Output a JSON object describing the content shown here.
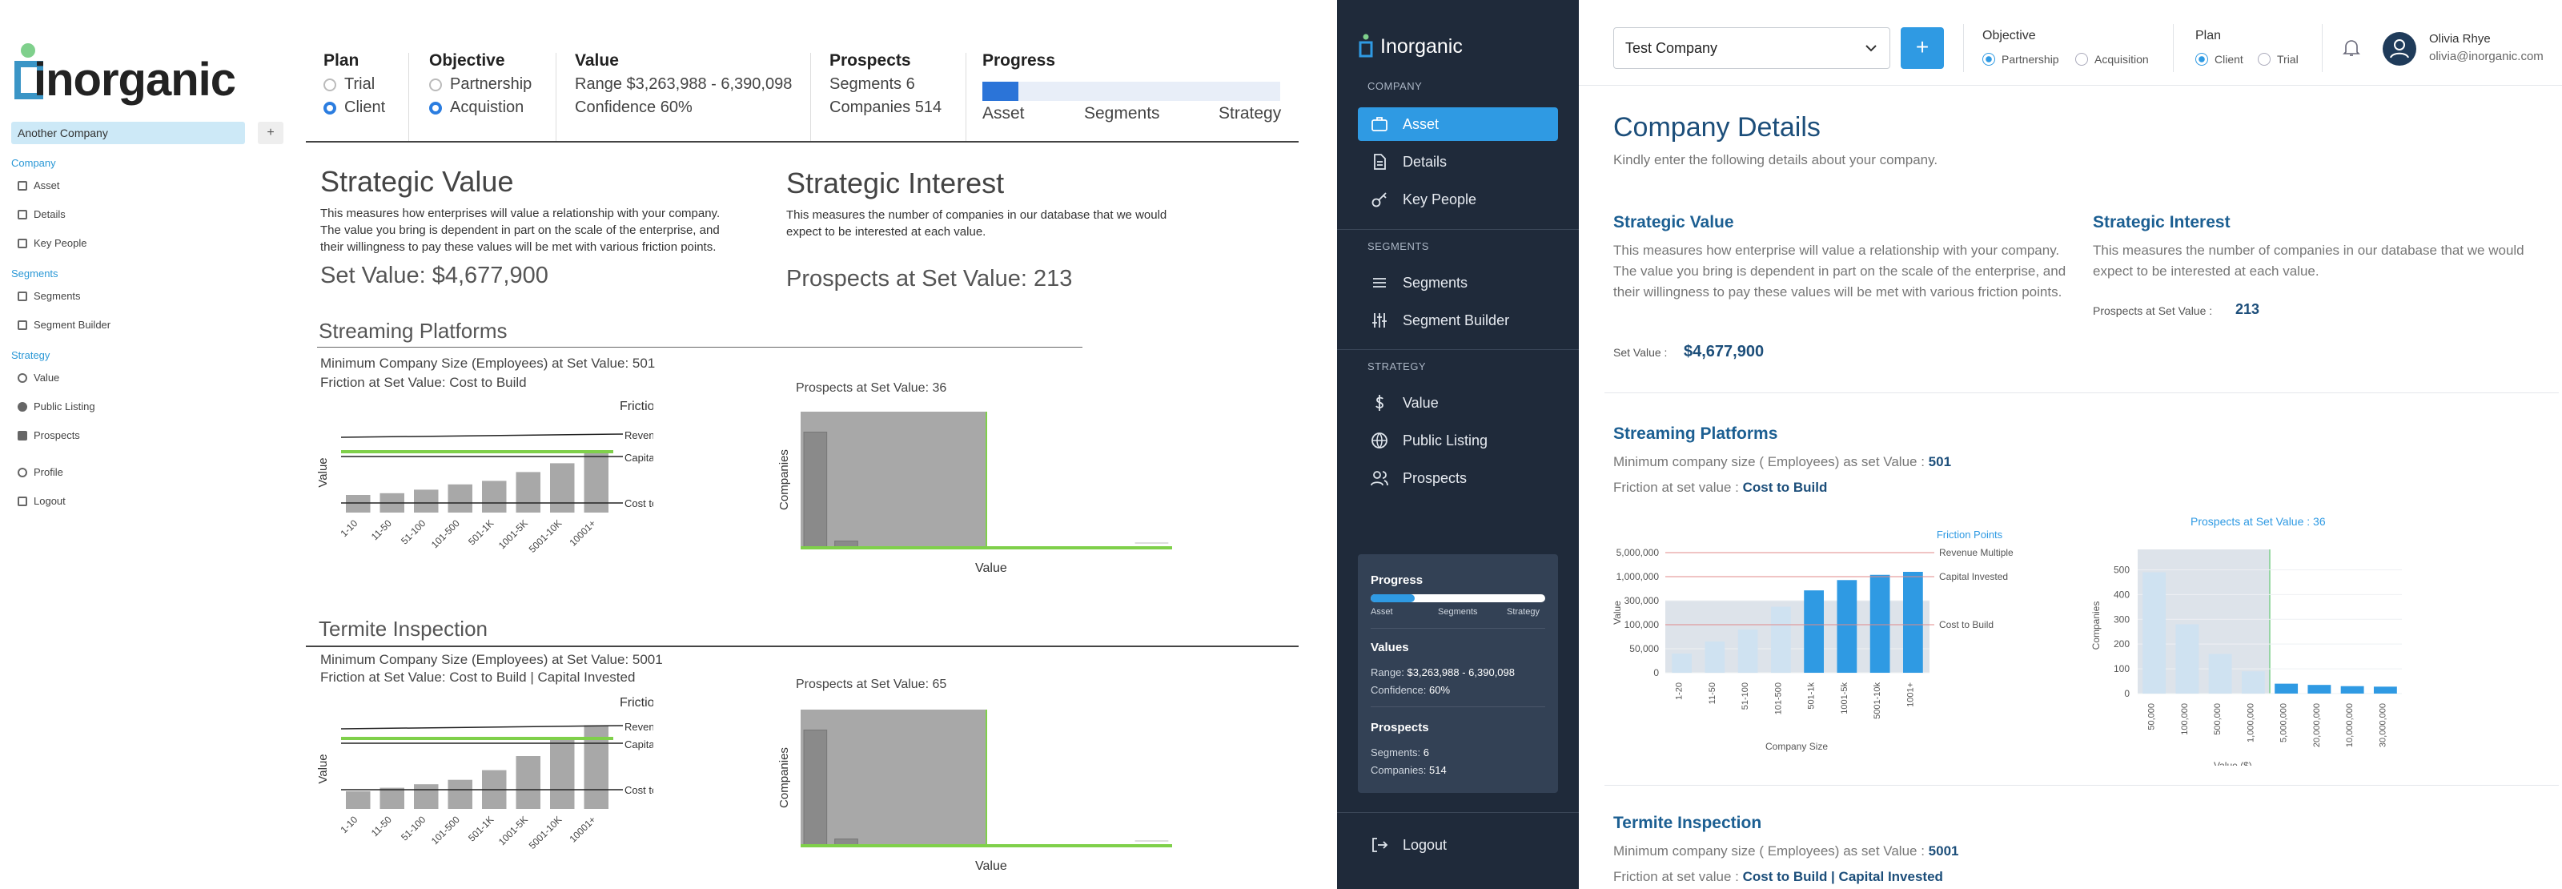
{
  "wire": {
    "logo": "inorganic",
    "company": "Another Company",
    "plus": "+",
    "sidebar": {
      "company": "Company",
      "asset": "Asset",
      "details": "Details",
      "key_people": "Key People",
      "segments_h": "Segments",
      "segments": "Segments",
      "segment_builder": "Segment Builder",
      "strategy_h": "Strategy",
      "value": "Value",
      "public_listing": "Public Listing",
      "prospects": "Prospects",
      "profile": "Profile",
      "logout": "Logout"
    },
    "plan": {
      "title": "Plan",
      "opt1": "Trial",
      "opt2": "Client"
    },
    "objective": {
      "title": "Objective",
      "opt1": "Partnership",
      "opt2": "Acquistion"
    },
    "value": {
      "title": "Value",
      "range": "Range $3,263,988 - 6,390,098",
      "confidence": "Confidence 60%"
    },
    "prospects": {
      "title": "Prospects",
      "segments": "Segments 6",
      "companies": "Companies 514"
    },
    "progress": {
      "title": "Progress",
      "asset": "Asset",
      "segments": "Segments",
      "strategy": "Strategy",
      "fraction": 0.12
    },
    "strategic_value": {
      "title": "Strategic Value",
      "desc": "This measures how enterprises will value a relationship with your company. The value you bring is dependent in part on the scale of the enterprise, and their willingness to pay these values will be met with various friction points.",
      "set": "Set Value: $4,677,900"
    },
    "strategic_interest": {
      "title": "Strategic Interest",
      "desc": "This measures the number of companies in our database that we would expect to be interested at each value.",
      "prospects": "Prospects at Set Value: 213"
    },
    "streaming": {
      "title": "Streaming Platforms",
      "min": "Minimum Company Size (Employees) at Set Value: 501",
      "friction": "Friction at Set Value: Cost to Build",
      "prospects": "Prospects at Set Value: 36"
    },
    "termite": {
      "title": "Termite Inspection",
      "min": "Minimum Company Size (Employees) at Set Value: 5001",
      "friction": "Friction at Set Value: Cost to Build | Capital Invested",
      "prospects": "Prospects at Set Value: 65"
    },
    "chart_labels": {
      "friction_points": "Friction Points",
      "revenue_multiple": "Revenue Multiple",
      "capital_invested": "Capital Invested",
      "cost_to_build": "Cost to Build",
      "value_axis": "Value",
      "companies_axis": "Companies",
      "value_x": "Value"
    },
    "categories": [
      "1-10",
      "11-50",
      "51-100",
      "101-500",
      "501-1K",
      "1001-5K",
      "5001-10K",
      "10001+"
    ]
  },
  "app": {
    "brand": "Inorganic",
    "nav": {
      "company_h": "COMPANY",
      "asset": "Asset",
      "details": "Details",
      "key_people": "Key People",
      "segments_h": "SEGMENTS",
      "segments": "Segments",
      "segment_builder": "Segment Builder",
      "strategy_h": "STRATEGY",
      "value": "Value",
      "public_listing": "Public Listing",
      "prospects": "Prospects",
      "logout": "Logout"
    },
    "progress_card": {
      "progress": "Progress",
      "asset": "Asset",
      "segments": "Segments",
      "strategy": "Strategy",
      "fraction": 0.25,
      "values": "Values",
      "range_l": "Range:",
      "range_v": "$3,263,988 - 6,390,098",
      "conf_l": "Confidence:",
      "conf_v": "60%",
      "prospects": "Prospects",
      "seg_l": "Segments:",
      "seg_v": "6",
      "comp_l": "Companies:",
      "comp_v": "514"
    },
    "topbar": {
      "company": "Test Company",
      "plus": "+",
      "objective": "Objective",
      "partnership": "Partnership",
      "acquisition": "Acquisition",
      "plan": "Plan",
      "client": "Client",
      "trial": "Trial",
      "user_name": "Olivia Rhye",
      "user_email": "olivia@inorganic.com"
    },
    "page": {
      "title": "Company Details",
      "subtitle": "Kindly enter the following details about your company.",
      "sv_title": "Strategic Value",
      "sv_desc": "This measures how enterprise will value a relationship with your company. The value you bring is dependent in part on the scale of the enterprise, and their willingness to pay these values will be met with various friction points.",
      "sv_label": "Set Value :",
      "sv_value": "$4,677,900",
      "si_title": "Strategic Interest",
      "si_desc": "This measures the number of companies in our database that we would expect to be interested at each value.",
      "si_label": "Prospects at Set Value :",
      "si_value": "213",
      "sp_title": "Streaming Platforms",
      "sp_min_l": "Minimum company size ( Employees) as set Value :",
      "sp_min_v": "501",
      "sp_fr_l": "Friction at set value :",
      "sp_fr_v": "Cost to Build",
      "ti_title": "Termite Inspection",
      "ti_min_l": "Minimum company size ( Employees) as set Value :",
      "ti_min_v": "5001",
      "ti_fr_l": "Friction at set value :",
      "ti_fr_v": "Cost to Build | Capital Invested"
    }
  },
  "chart_data": [
    {
      "type": "bar",
      "title": "",
      "xlabel": "Company Size",
      "ylabel": "Value",
      "categories": [
        "1-20",
        "11-50",
        "51-100",
        "101-500",
        "501-1k",
        "1001-5k",
        "5001-10k",
        "1001+"
      ],
      "values": [
        40000,
        65000,
        90000,
        250000,
        600000,
        900000,
        1300000,
        1800000
      ],
      "highlight_from": "501-1k",
      "yticks": [
        "0",
        "50,000",
        "100,000",
        "300,000",
        "1,000,000",
        "5,000,000"
      ],
      "legend_title": "Friction Points",
      "thresholds": [
        {
          "name": "Revenue Multiple"
        },
        {
          "name": "Capital Invested"
        },
        {
          "name": "Cost to Build"
        }
      ]
    },
    {
      "type": "bar",
      "title": "Prospects at Set Value : 36",
      "xlabel": "Value ($)",
      "ylabel": "Companies",
      "categories": [
        "50,000",
        "100,000",
        "500,000",
        "1,000,000",
        "5,000,000",
        "20,000,000",
        "10,000,000",
        "30,000,000"
      ],
      "values": [
        490,
        280,
        160,
        90,
        40,
        35,
        30,
        28
      ],
      "yticks": [
        "0",
        "100",
        "200",
        "300",
        "400",
        "500"
      ],
      "ylim": [
        0,
        550
      ],
      "highlight_from": "5,000,000"
    }
  ]
}
